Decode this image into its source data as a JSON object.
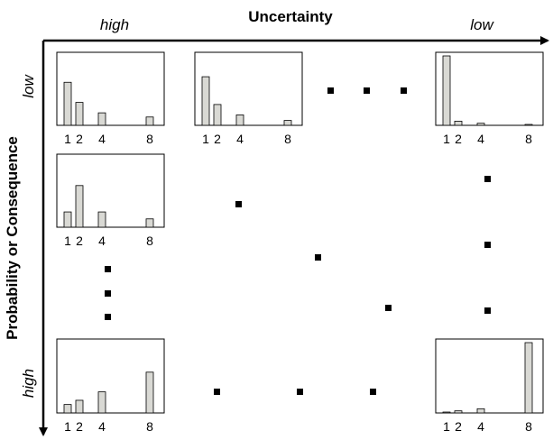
{
  "x_axis": {
    "label": "Uncertainty",
    "left_end": "high",
    "right_end": "low"
  },
  "y_axis": {
    "label": "Probability or Consequence",
    "top_end": "low",
    "bottom_end": "high"
  },
  "tick_labels": [
    "1",
    "2",
    "4",
    "8"
  ],
  "panel_fill": "#d9d9d4",
  "chart_data": [
    {
      "type": "bar",
      "categories": [
        "1",
        "2",
        "4",
        "8"
      ],
      "values": [
        0.62,
        0.33,
        0.18,
        0.12
      ],
      "ylim": [
        0,
        1
      ]
    },
    {
      "type": "bar",
      "categories": [
        "1",
        "2",
        "4",
        "8"
      ],
      "values": [
        0.7,
        0.3,
        0.15,
        0.07
      ],
      "ylim": [
        0,
        1
      ]
    },
    {
      "type": "bar",
      "categories": [
        "1",
        "2",
        "4",
        "8"
      ],
      "values": [
        1.0,
        0.06,
        0.03,
        0.01
      ],
      "ylim": [
        0,
        1
      ]
    },
    {
      "type": "bar",
      "categories": [
        "1",
        "2",
        "4",
        "8"
      ],
      "values": [
        0.22,
        0.6,
        0.22,
        0.12
      ],
      "ylim": [
        0,
        1
      ]
    },
    {
      "type": "bar",
      "categories": [
        "1",
        "2",
        "4",
        "8"
      ],
      "values": [
        0.12,
        0.18,
        0.3,
        0.58
      ],
      "ylim": [
        0,
        1
      ]
    },
    {
      "type": "bar",
      "categories": [
        "1",
        "2",
        "4",
        "8"
      ],
      "values": [
        0.01,
        0.03,
        0.06,
        1.0
      ],
      "ylim": [
        0,
        1
      ]
    }
  ]
}
